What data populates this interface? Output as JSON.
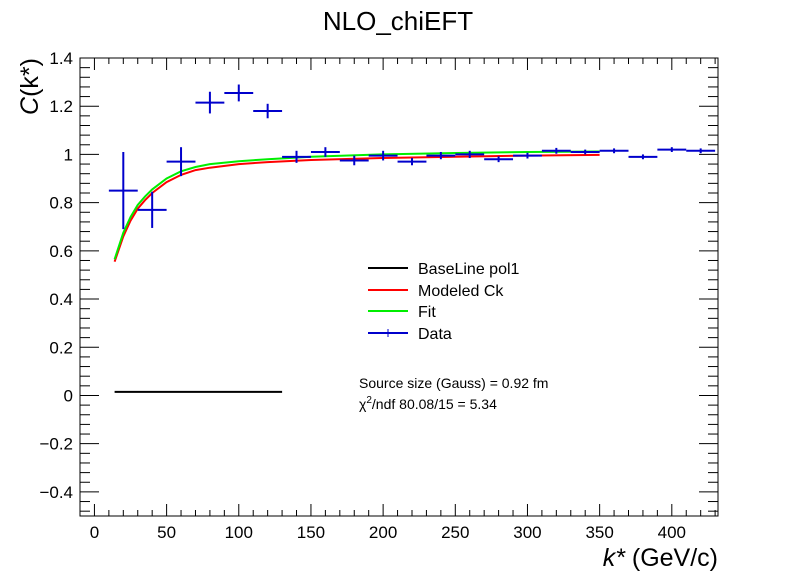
{
  "chart_data": {
    "type": "scatter",
    "title": "NLO_chiEFT",
    "xlabel": "k* (GeV/c)",
    "ylabel": "C(k*)",
    "xlim": [
      -10,
      432
    ],
    "ylim": [
      -0.5,
      1.4
    ],
    "x_ticks": [
      0,
      50,
      100,
      150,
      200,
      250,
      300,
      350,
      400
    ],
    "y_ticks": [
      -0.4,
      -0.2,
      0,
      0.2,
      0.4,
      0.6,
      0.8,
      1,
      1.2,
      1.4
    ],
    "y_tick_labels": [
      "−0.4",
      "−0.2",
      "0",
      "0.2",
      "0.4",
      "0.6",
      "0.8",
      "1",
      "1.2",
      "1.4"
    ],
    "grid": false,
    "legend_position": "center-right",
    "series": [
      {
        "name": "Data",
        "kind": "points_with_errors",
        "color": "#0000cc",
        "x": [
          20,
          40,
          60,
          80,
          100,
          120,
          140,
          160,
          180,
          200,
          220,
          240,
          260,
          280,
          300,
          320,
          340,
          360,
          380,
          400,
          420
        ],
        "x_err": [
          10,
          10,
          10,
          10,
          10,
          10,
          10,
          10,
          10,
          10,
          10,
          10,
          10,
          10,
          10,
          10,
          10,
          10,
          10,
          10,
          10
        ],
        "y": [
          0.85,
          0.77,
          0.97,
          1.215,
          1.255,
          1.18,
          0.99,
          1.01,
          0.975,
          0.995,
          0.97,
          0.995,
          1.0,
          0.98,
          0.995,
          1.015,
          1.01,
          1.015,
          0.99,
          1.02,
          1.015
        ],
        "y_err": [
          0.16,
          0.075,
          0.06,
          0.045,
          0.035,
          0.03,
          0.025,
          0.02,
          0.02,
          0.02,
          0.015,
          0.015,
          0.015,
          0.012,
          0.012,
          0.012,
          0.01,
          0.01,
          0.01,
          0.01,
          0.01
        ]
      },
      {
        "name": "Modeled Ck",
        "kind": "line",
        "color": "#ff0000",
        "x": [
          14,
          20,
          25,
          30,
          35,
          40,
          50,
          60,
          70,
          80,
          100,
          120,
          150,
          200,
          250,
          300,
          350
        ],
        "y": [
          0.555,
          0.66,
          0.725,
          0.775,
          0.81,
          0.84,
          0.885,
          0.915,
          0.935,
          0.945,
          0.96,
          0.968,
          0.977,
          0.985,
          0.99,
          0.995,
          0.998
        ]
      },
      {
        "name": "Fit",
        "kind": "line",
        "color": "#00ee00",
        "x": [
          14,
          20,
          25,
          30,
          35,
          40,
          50,
          60,
          70,
          80,
          100,
          120,
          150,
          200,
          250,
          300,
          350
        ],
        "y": [
          0.565,
          0.675,
          0.74,
          0.79,
          0.825,
          0.855,
          0.9,
          0.93,
          0.948,
          0.96,
          0.972,
          0.98,
          0.99,
          1.0,
          1.006,
          1.01,
          1.012
        ]
      },
      {
        "name": "BaseLine pol1",
        "kind": "line",
        "color": "#000000",
        "x": [
          14,
          130
        ],
        "y": [
          0.015,
          0.015
        ]
      }
    ],
    "legend": [
      {
        "label": "BaseLine pol1",
        "color": "#000000"
      },
      {
        "label": "Modeled Ck",
        "color": "#ff0000"
      },
      {
        "label": "Fit",
        "color": "#00ee00"
      },
      {
        "label": "Data",
        "color": "#0000cc"
      }
    ],
    "annotations": {
      "source_size": "Source size (Gauss) = 0.92 fm",
      "chi2_symbol": "χ",
      "chi2_superscript": "2",
      "chi2_rest": "/ndf 80.08/15 = 5.34"
    }
  }
}
